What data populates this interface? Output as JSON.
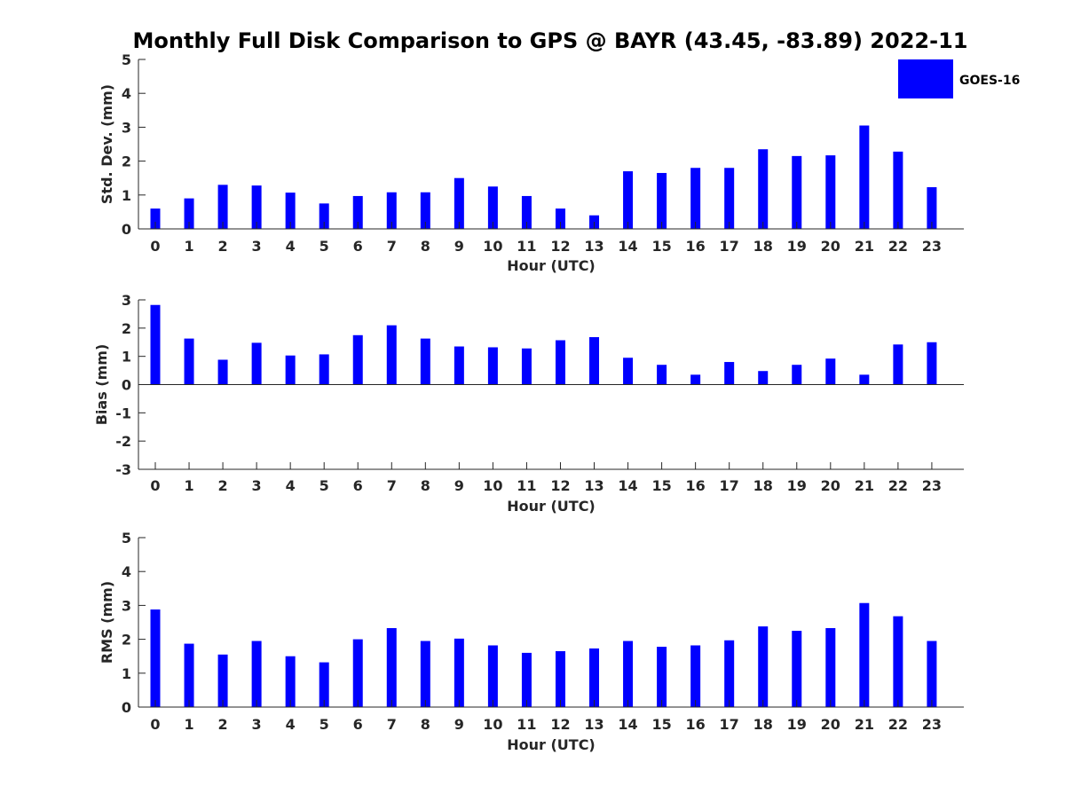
{
  "title": "Monthly Full Disk Comparison to GPS @ BAYR (43.45, -83.89) 2022-11",
  "colors": {
    "bar": "#0000ff",
    "axis": "#262626",
    "legend_border": "#262626"
  },
  "legend": {
    "label": "GOES-16",
    "placement": "top-right"
  },
  "chart_data": [
    {
      "type": "bar",
      "name": "std-dev",
      "categories": [
        "0",
        "1",
        "2",
        "3",
        "4",
        "5",
        "6",
        "7",
        "8",
        "9",
        "10",
        "11",
        "12",
        "13",
        "14",
        "15",
        "16",
        "17",
        "18",
        "19",
        "20",
        "21",
        "22",
        "23"
      ],
      "series": [
        {
          "name": "GOES-16",
          "values": [
            0.6,
            0.9,
            1.3,
            1.28,
            1.07,
            0.75,
            0.97,
            1.08,
            1.08,
            1.5,
            1.25,
            0.97,
            0.6,
            0.4,
            1.7,
            1.65,
            1.8,
            1.8,
            2.35,
            2.15,
            2.17,
            3.05,
            2.28,
            1.23
          ]
        }
      ],
      "xlabel": "Hour (UTC)",
      "ylabel": "Std. Dev. (mm)",
      "ylim": [
        0,
        5
      ],
      "yticks": [
        0,
        1,
        2,
        3,
        4,
        5
      ]
    },
    {
      "type": "bar",
      "name": "bias",
      "categories": [
        "0",
        "1",
        "2",
        "3",
        "4",
        "5",
        "6",
        "7",
        "8",
        "9",
        "10",
        "11",
        "12",
        "13",
        "14",
        "15",
        "16",
        "17",
        "18",
        "19",
        "20",
        "21",
        "22",
        "23"
      ],
      "series": [
        {
          "name": "GOES-16",
          "values": [
            2.82,
            1.63,
            0.88,
            1.48,
            1.03,
            1.07,
            1.75,
            2.1,
            1.63,
            1.35,
            1.32,
            1.28,
            1.57,
            1.68,
            0.95,
            0.7,
            0.35,
            0.8,
            0.48,
            0.7,
            0.92,
            0.35,
            1.42,
            1.5
          ]
        }
      ],
      "xlabel": "Hour (UTC)",
      "ylabel": "Bias (mm)",
      "ylim": [
        -3,
        3
      ],
      "yticks": [
        -3,
        -2,
        -1,
        0,
        1,
        2,
        3
      ]
    },
    {
      "type": "bar",
      "name": "rms",
      "categories": [
        "0",
        "1",
        "2",
        "3",
        "4",
        "5",
        "6",
        "7",
        "8",
        "9",
        "10",
        "11",
        "12",
        "13",
        "14",
        "15",
        "16",
        "17",
        "18",
        "19",
        "20",
        "21",
        "22",
        "23"
      ],
      "series": [
        {
          "name": "GOES-16",
          "values": [
            2.88,
            1.87,
            1.55,
            1.95,
            1.5,
            1.32,
            2.0,
            2.33,
            1.95,
            2.02,
            1.82,
            1.6,
            1.65,
            1.73,
            1.95,
            1.78,
            1.82,
            1.97,
            2.38,
            2.25,
            2.33,
            3.07,
            2.68,
            1.95
          ]
        }
      ],
      "xlabel": "Hour (UTC)",
      "ylabel": "RMS (mm)",
      "ylim": [
        0,
        5
      ],
      "yticks": [
        0,
        1,
        2,
        3,
        4,
        5
      ]
    }
  ]
}
